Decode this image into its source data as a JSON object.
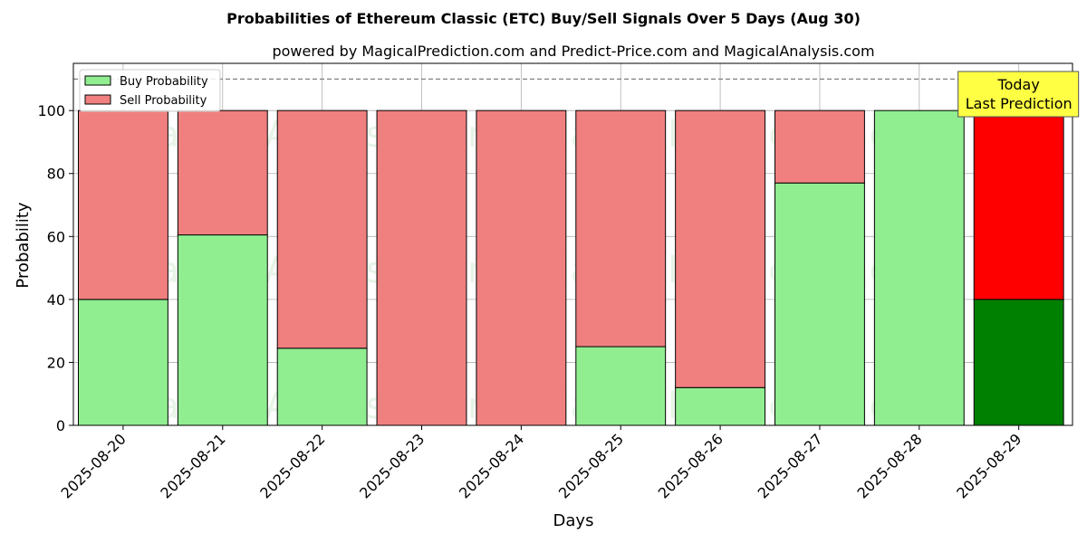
{
  "chart_data": {
    "type": "bar",
    "stacked": true,
    "title": "Probabilities of Ethereum Classic (ETC) Buy/Sell Signals Over 5 Days (Aug 30)",
    "subtitle": "powered by MagicalPrediction.com and Predict-Price.com and MagicalAnalysis.com",
    "xlabel": "Days",
    "ylabel": "Probability",
    "ylim": [
      0,
      115
    ],
    "yticks": [
      0,
      20,
      40,
      60,
      80,
      100
    ],
    "grid": true,
    "legend_position": "top-left",
    "reference_line": 110,
    "categories": [
      "2025-08-20",
      "2025-08-21",
      "2025-08-22",
      "2025-08-23",
      "2025-08-24",
      "2025-08-25",
      "2025-08-26",
      "2025-08-27",
      "2025-08-28",
      "2025-08-29"
    ],
    "series": [
      {
        "name": "Buy Probability",
        "color": "#90ee90",
        "values": [
          40,
          60.5,
          24.5,
          0,
          0,
          25,
          12,
          77,
          100,
          40
        ]
      },
      {
        "name": "Sell Probability",
        "color": "#f08080",
        "values": [
          60,
          39.5,
          75.5,
          100,
          100,
          75,
          88,
          23,
          0,
          60
        ]
      }
    ],
    "highlight": {
      "index": 9,
      "buy_color": "#008000",
      "sell_color": "#ff0000"
    },
    "annotation": {
      "line1": "Today",
      "line2": "Last Prediction",
      "color": "#ffff44"
    },
    "watermarks": [
      "MagicalAnalysis.com",
      "MagicalPrediction.com"
    ]
  }
}
